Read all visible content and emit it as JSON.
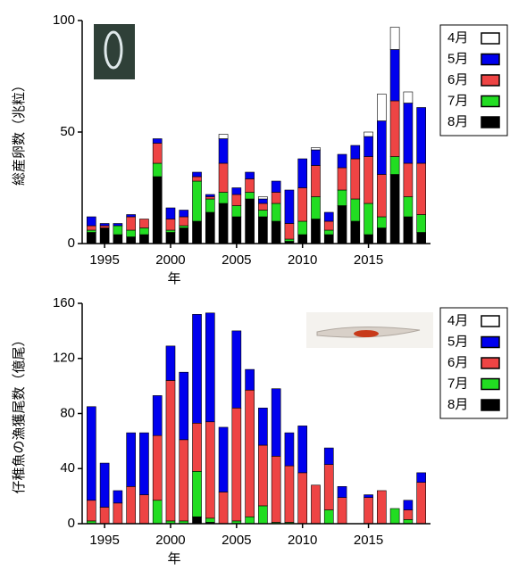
{
  "chart_data": [
    {
      "type": "bar",
      "stacked": true,
      "ylabel": "総産卵数（兆粒）",
      "xlabel": "年",
      "x": [
        1994,
        1995,
        1996,
        1997,
        1998,
        1999,
        2000,
        2001,
        2002,
        2003,
        2004,
        2005,
        2006,
        2007,
        2008,
        2009,
        2010,
        2011,
        2012,
        2013,
        2014,
        2015,
        2016,
        2017,
        2018,
        2019
      ],
      "xlim": [
        1993.3,
        2019.7
      ],
      "xticks": [
        1995,
        2000,
        2005,
        2010,
        2015
      ],
      "ylim": [
        0,
        100
      ],
      "yticks": [
        0,
        50,
        100
      ],
      "series": [
        {
          "name": "4月",
          "color": "#ffffff",
          "values": [
            0,
            0,
            0,
            0,
            0,
            0,
            0,
            0,
            0,
            0,
            2,
            0,
            0,
            1,
            0,
            0,
            0,
            1,
            0,
            0,
            0,
            2,
            12,
            10,
            5,
            0
          ]
        },
        {
          "name": "5月",
          "color": "#0000ee",
          "values": [
            4,
            1,
            1,
            1,
            0,
            2,
            5,
            3,
            2,
            1,
            11,
            3,
            3,
            2,
            5,
            15,
            13,
            7,
            4,
            6,
            6,
            9,
            24,
            23,
            27,
            25
          ]
        },
        {
          "name": "6月",
          "color": "#ee4444",
          "values": [
            2,
            1,
            0,
            6,
            4,
            9,
            5,
            4,
            2,
            1,
            13,
            5,
            6,
            3,
            5,
            7,
            15,
            14,
            4,
            10,
            18,
            21,
            19,
            25,
            15,
            23
          ]
        },
        {
          "name": "7月",
          "color": "#22dd22",
          "values": [
            1,
            0,
            4,
            3,
            3,
            6,
            1,
            1,
            18,
            6,
            5,
            5,
            3,
            3,
            8,
            1,
            6,
            10,
            2,
            7,
            10,
            14,
            5,
            8,
            9,
            8
          ]
        },
        {
          "name": "8月",
          "color": "#000000",
          "values": [
            5,
            7,
            4,
            3,
            4,
            30,
            5,
            7,
            10,
            14,
            18,
            12,
            20,
            12,
            10,
            1,
            4,
            11,
            4,
            17,
            10,
            4,
            7,
            31,
            12,
            5
          ]
        }
      ]
    },
    {
      "type": "bar",
      "stacked": true,
      "ylabel": "仔稚魚の漁獲尾数（億尾）",
      "xlabel": "年",
      "x": [
        1994,
        1995,
        1996,
        1997,
        1998,
        1999,
        2000,
        2001,
        2002,
        2003,
        2004,
        2005,
        2006,
        2007,
        2008,
        2009,
        2010,
        2011,
        2012,
        2013,
        2014,
        2015,
        2016,
        2017,
        2018,
        2019
      ],
      "xlim": [
        1993.3,
        2019.7
      ],
      "xticks": [
        1995,
        2000,
        2005,
        2010,
        2015
      ],
      "ylim": [
        0,
        160
      ],
      "yticks": [
        0,
        40,
        80,
        120,
        160
      ],
      "series": [
        {
          "name": "4月",
          "color": "#ffffff",
          "values": [
            0,
            0,
            0,
            0,
            0,
            0,
            0,
            0,
            0,
            0,
            0,
            0,
            0,
            0,
            0,
            0,
            0,
            0,
            0,
            0,
            0,
            0,
            0,
            0,
            0,
            0
          ]
        },
        {
          "name": "5月",
          "color": "#0000ee",
          "values": [
            68,
            32,
            9,
            39,
            45,
            29,
            25,
            49,
            79,
            79,
            47,
            56,
            15,
            27,
            49,
            24,
            34,
            0,
            12,
            8,
            0,
            2,
            0,
            0,
            7,
            7
          ]
        },
        {
          "name": "6月",
          "color": "#ee4444",
          "values": [
            15,
            12,
            15,
            27,
            21,
            47,
            102,
            59,
            35,
            70,
            23,
            82,
            92,
            44,
            48,
            41,
            37,
            28,
            33,
            19,
            0,
            19,
            24,
            0,
            7,
            30
          ]
        },
        {
          "name": "7月",
          "color": "#22dd22",
          "values": [
            2,
            0,
            0,
            0,
            0,
            17,
            2,
            2,
            33,
            3,
            0,
            2,
            5,
            13,
            1,
            1,
            0,
            0,
            10,
            0,
            0,
            0,
            0,
            11,
            3,
            0
          ]
        },
        {
          "name": "8月",
          "color": "#000000",
          "values": [
            0,
            0,
            0,
            0,
            0,
            0,
            0,
            0,
            5,
            1,
            0,
            0,
            0,
            0,
            0,
            0,
            0,
            0,
            0,
            0,
            0,
            0,
            0,
            0,
            0,
            0
          ]
        }
      ]
    }
  ]
}
